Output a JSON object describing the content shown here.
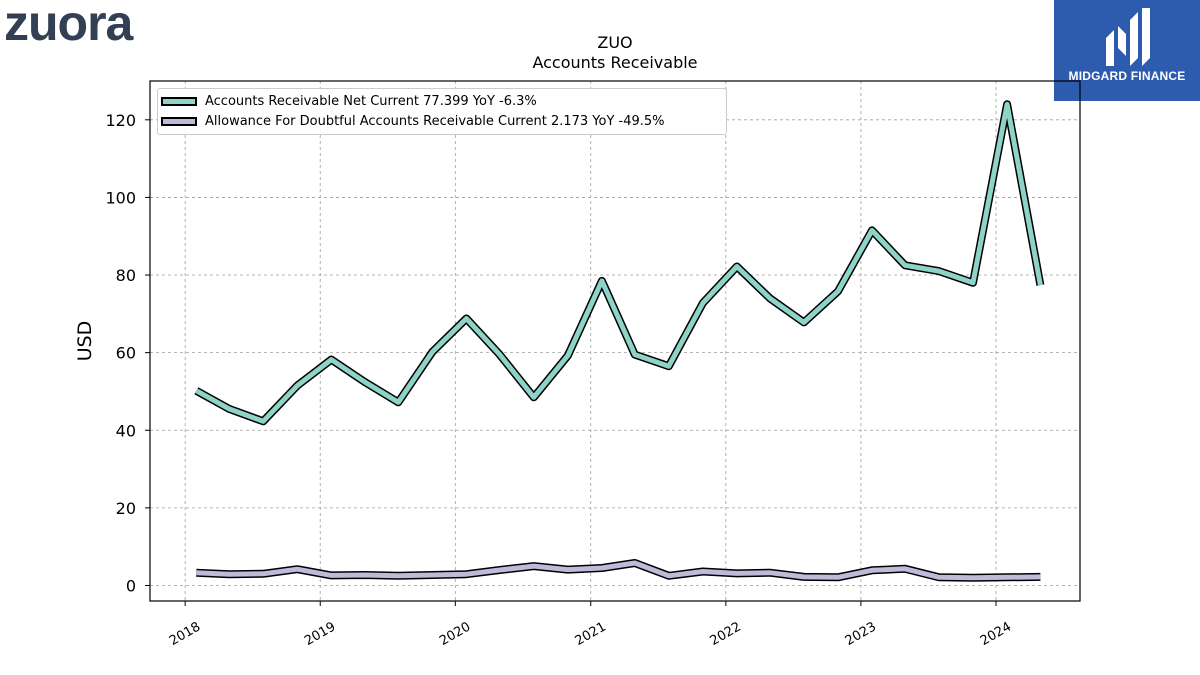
{
  "header": {
    "company_logo_text": "zuora",
    "brand_logo_text": "MIDGARD FINANCE"
  },
  "colors": {
    "series_1": "#8dd3c7",
    "series_2": "#bebada",
    "brand_background": "#2d5bad",
    "company_logo": "#333f52"
  },
  "chart_data": {
    "type": "line",
    "title": "ZUO",
    "subtitle": "Accounts Receivable",
    "xlabel": "",
    "ylabel": "USD",
    "ylim": [
      -4,
      130
    ],
    "xlim": [
      "2017-09-28",
      "2024-08-15"
    ],
    "yticks": [
      0,
      20,
      40,
      60,
      80,
      100,
      120
    ],
    "xticks": [
      "2018",
      "2019",
      "2020",
      "2021",
      "2022",
      "2023",
      "2024"
    ],
    "grid": true,
    "legend_position": "top-left",
    "x": [
      "2018-01-31",
      "2018-04-30",
      "2018-07-31",
      "2018-10-31",
      "2019-01-31",
      "2019-04-30",
      "2019-07-31",
      "2019-10-31",
      "2020-01-31",
      "2020-04-30",
      "2020-07-31",
      "2020-10-31",
      "2021-01-31",
      "2021-04-30",
      "2021-07-31",
      "2021-10-31",
      "2022-01-31",
      "2022-04-30",
      "2022-07-31",
      "2022-10-31",
      "2023-01-31",
      "2023-04-30",
      "2023-07-31",
      "2023-10-31",
      "2024-01-31",
      "2024-04-30"
    ],
    "series": [
      {
        "name": "Accounts Receivable Net Current",
        "legend": "Accounts Receivable Net Current  77.399 YoY -6.3%",
        "color": "#8dd3c7",
        "values": [
          50.2,
          45.5,
          42.3,
          51.5,
          58.2,
          52.5,
          47.2,
          60.2,
          68.8,
          59.5,
          48.5,
          59.2,
          78.5,
          59.5,
          56.5,
          72.8,
          82.2,
          74.0,
          67.8,
          75.8,
          91.5,
          82.5,
          81.0,
          78.0,
          124.0,
          77.4
        ]
      },
      {
        "name": "Allowance For Doubtful Accounts Receivable Current",
        "legend": "Allowance For Doubtful Accounts Receivable Current  2.173 YoY -49.5%",
        "color": "#bebada",
        "values": [
          3.3,
          2.9,
          3.0,
          4.2,
          2.6,
          2.7,
          2.5,
          2.7,
          2.9,
          4.0,
          5.0,
          4.1,
          4.5,
          5.8,
          2.5,
          3.6,
          3.1,
          3.3,
          2.2,
          2.1,
          3.9,
          4.3,
          2.1,
          2.0,
          2.1,
          2.2
        ]
      }
    ]
  }
}
